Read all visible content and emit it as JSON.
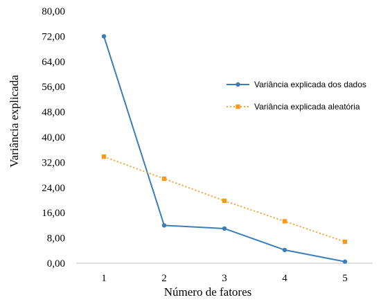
{
  "chart_data": {
    "type": "line",
    "xlabel": "Número de fatores",
    "ylabel": "Variância explicada",
    "ylim": [
      0,
      80
    ],
    "y_tick_labels": [
      "0,00",
      "8,00",
      "16,00",
      "24,00",
      "32,00",
      "40,00",
      "48,00",
      "56,00",
      "64,00",
      "72,00",
      "80,00"
    ],
    "x": [
      1,
      2,
      3,
      4,
      5
    ],
    "x_tick_labels": [
      "1",
      "2",
      "3",
      "4",
      "5"
    ],
    "series": [
      {
        "name": "Variância explicada dos dados",
        "values": [
          72.0,
          12.0,
          11.0,
          4.2,
          0.5
        ],
        "color": "#3B7DB8",
        "marker": "circle",
        "style": "solid"
      },
      {
        "name": "Variância explicada aleatória",
        "values": [
          33.8,
          26.8,
          19.8,
          13.3,
          6.8
        ],
        "color": "#F59A1C",
        "marker": "square",
        "style": "dotted"
      }
    ],
    "legend_position": "right",
    "grid": false
  }
}
